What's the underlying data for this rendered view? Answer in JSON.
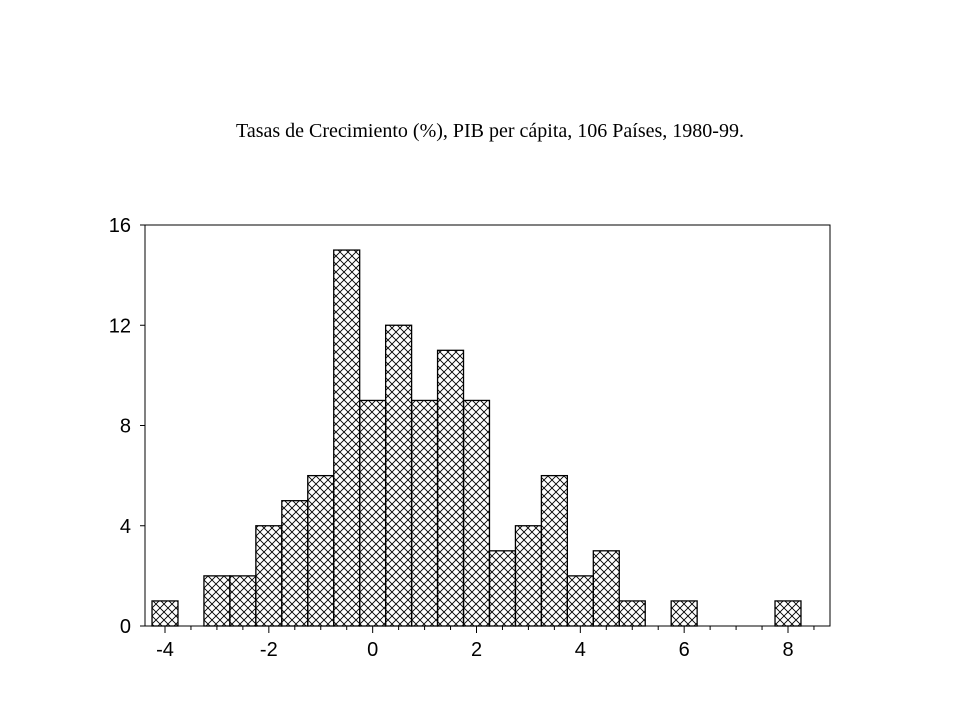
{
  "chart_data": {
    "type": "bar",
    "title": "Tasas de Crecimiento (%), PIB per cápita, 106 Países, 1980-99.",
    "xlabel": "",
    "ylabel": "",
    "bin_width": 0.5,
    "bins": [
      {
        "start": -4.25,
        "count": 1
      },
      {
        "start": -3.75,
        "count": 0
      },
      {
        "start": -3.25,
        "count": 2
      },
      {
        "start": -2.75,
        "count": 2
      },
      {
        "start": -2.25,
        "count": 4
      },
      {
        "start": -1.75,
        "count": 5
      },
      {
        "start": -1.25,
        "count": 6
      },
      {
        "start": -0.75,
        "count": 15
      },
      {
        "start": -0.25,
        "count": 9
      },
      {
        "start": 0.25,
        "count": 12
      },
      {
        "start": 0.75,
        "count": 9
      },
      {
        "start": 1.25,
        "count": 11
      },
      {
        "start": 1.75,
        "count": 9
      },
      {
        "start": 2.25,
        "count": 3
      },
      {
        "start": 2.75,
        "count": 4
      },
      {
        "start": 3.25,
        "count": 6
      },
      {
        "start": 3.75,
        "count": 2
      },
      {
        "start": 4.25,
        "count": 3
      },
      {
        "start": 4.75,
        "count": 1
      },
      {
        "start": 5.25,
        "count": 0
      },
      {
        "start": 5.75,
        "count": 1
      },
      {
        "start": 6.25,
        "count": 0
      },
      {
        "start": 6.75,
        "count": 0
      },
      {
        "start": 7.25,
        "count": 0
      },
      {
        "start": 7.75,
        "count": 1
      }
    ],
    "xlim": [
      -4.5,
      8.5
    ],
    "ylim": [
      0,
      16
    ],
    "x_ticks": [
      -4,
      -2,
      0,
      2,
      4,
      6,
      8
    ],
    "y_ticks": [
      0,
      4,
      8,
      12,
      16
    ],
    "grid": false,
    "fill_pattern": "crosshatch"
  }
}
